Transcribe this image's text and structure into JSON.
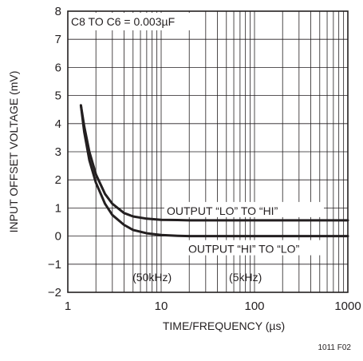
{
  "chart_data": {
    "type": "line",
    "title": "",
    "xlabel": "TIME/FREQUENCY (µs)",
    "ylabel": "INPUT OFFSET VOLTAGE (mV)",
    "x_scale": "log",
    "xlim": [
      1,
      1000
    ],
    "ylim": [
      -2,
      8
    ],
    "x_ticks": [
      1,
      10,
      100,
      1000
    ],
    "x_tick_labels": [
      "1",
      "10",
      "100",
      "1000"
    ],
    "y_ticks": [
      -2,
      -1,
      0,
      1,
      2,
      3,
      4,
      5,
      6,
      7,
      8
    ],
    "y_tick_labels": [
      "−2",
      "−1",
      "0",
      "1",
      "2",
      "3",
      "4",
      "5",
      "6",
      "7",
      "8"
    ],
    "grid": true,
    "condition_note": "C8 TO C6 = 0.003µF",
    "annotations": [
      {
        "text": "(50kHz)",
        "x": 8,
        "y": -1.6
      },
      {
        "text": "(5kHz)",
        "x": 80,
        "y": -1.6
      }
    ],
    "series": [
      {
        "name": "OUTPUT “LO” TO “HI”",
        "x": [
          1.38,
          1.5,
          1.7,
          2.0,
          2.5,
          3.0,
          4.0,
          5.0,
          7.0,
          10,
          15,
          20,
          50,
          100,
          1000
        ],
        "y": [
          4.65,
          3.9,
          3.0,
          2.2,
          1.5,
          1.15,
          0.82,
          0.7,
          0.62,
          0.58,
          0.57,
          0.56,
          0.56,
          0.56,
          0.56
        ]
      },
      {
        "name": "OUTPUT “HI” TO “LO”",
        "x": [
          1.38,
          1.5,
          1.7,
          2.0,
          2.5,
          3.0,
          4.0,
          5.0,
          7.0,
          10,
          15,
          20,
          50,
          100,
          1000
        ],
        "y": [
          4.65,
          3.7,
          2.7,
          1.9,
          1.15,
          0.75,
          0.4,
          0.22,
          0.1,
          0.04,
          0.01,
          0.0,
          0.0,
          0.0,
          0.0
        ]
      }
    ],
    "figure_id": "1011 F02"
  }
}
